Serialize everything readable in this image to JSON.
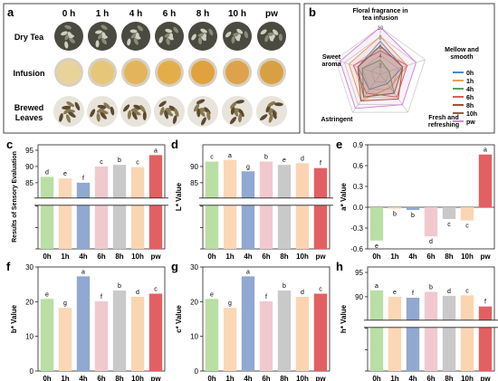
{
  "panel_labels": [
    "a",
    "b",
    "c",
    "d",
    "e",
    "f",
    "g",
    "h"
  ],
  "colors": {
    "0h": "#b9dfa5",
    "1h": "#fbd7b5",
    "4h": "#91a9d1",
    "6h": "#f0c9cf",
    "8h": "#c9c9c9",
    "10h": "#fbd5b1",
    "pw": "#e36062"
  },
  "radar_colors": {
    "0h": "#4a87c7",
    "1h": "#f0a050",
    "4h": "#5aa05a",
    "6h": "#d96060",
    "8h": "#a05030",
    "10h": "#8a6040",
    "pw": "#d08ad8"
  },
  "panel_a": {
    "columns": [
      "0 h",
      "1 h",
      "4 h",
      "6 h",
      "8 h",
      "10 h",
      "pw"
    ],
    "rows": [
      "Dry Tea",
      "Infusion",
      "Brewed Leaves"
    ]
  },
  "chart_data": [
    {
      "panel": "b",
      "type": "radar",
      "axes": [
        "Floral fragrance in tea infusion",
        "Mellow and smooth",
        "Fresh and refreshing",
        "Astringent",
        "Sweet aroma"
      ],
      "ticks": [
        "2",
        "4",
        "6",
        "8",
        "10"
      ],
      "rmax": 10,
      "legend": [
        "0h",
        "1h",
        "4h",
        "6h",
        "8h",
        "10h",
        "pw"
      ],
      "series": [
        {
          "name": "0h",
          "values": [
            7,
            5,
            2.5,
            4,
            5
          ]
        },
        {
          "name": "1h",
          "values": [
            8,
            6,
            3.5,
            7,
            7
          ]
        },
        {
          "name": "4h",
          "values": [
            3,
            2,
            5,
            6,
            4
          ]
        },
        {
          "name": "6h",
          "values": [
            5,
            6,
            6,
            5,
            6
          ]
        },
        {
          "name": "8h",
          "values": [
            6,
            5,
            6.5,
            7,
            5
          ]
        },
        {
          "name": "10h",
          "values": [
            6,
            5,
            5,
            6,
            5
          ]
        },
        {
          "name": "pw",
          "values": [
            10,
            8,
            8,
            9,
            9
          ]
        }
      ]
    },
    {
      "panel": "c",
      "type": "bar",
      "ylabel": "Results of Sensory Evaluation",
      "categories": [
        "0h",
        "1h",
        "4h",
        "6h",
        "8h",
        "10h",
        "pw"
      ],
      "values": [
        86.8,
        86.3,
        85.0,
        90.0,
        90.5,
        89.8,
        93.5
      ],
      "letters": [
        "d",
        "e",
        "f",
        "c",
        "b",
        "c",
        "a"
      ],
      "upper_range": [
        80,
        95
      ],
      "upper_ticks": [
        85,
        90,
        95
      ],
      "lower_range": [
        0,
        20
      ],
      "lower_ticks": [
        0,
        10,
        20
      ]
    },
    {
      "panel": "d",
      "type": "bar",
      "ylabel": "L* Value",
      "categories": [
        "0h",
        "1h",
        "4h",
        "6h",
        "8h",
        "10h",
        "pw"
      ],
      "values": [
        91.5,
        92.0,
        88.5,
        91.5,
        90.5,
        91.0,
        89.5
      ],
      "letters": [
        "c",
        "a",
        "g",
        "b",
        "e",
        "d",
        "f"
      ],
      "upper_range": [
        80,
        95
      ],
      "upper_ticks": [
        85,
        90
      ],
      "lower_range": [
        0,
        20
      ],
      "lower_ticks": [
        0,
        10,
        20
      ]
    },
    {
      "panel": "e",
      "type": "bar",
      "ylabel": "a* Value",
      "categories": [
        "0h",
        "1h",
        "4h",
        "6h",
        "8h",
        "10h",
        "pw"
      ],
      "values": [
        -0.48,
        -0.02,
        -0.04,
        -0.42,
        -0.17,
        -0.19,
        0.76
      ],
      "letters": [
        "e",
        "b",
        "b",
        "d",
        "c",
        "c",
        "a"
      ],
      "ylim": [
        -0.6,
        0.9
      ],
      "ticks": [
        -0.6,
        -0.3,
        0.0,
        0.3,
        0.6,
        0.9
      ]
    },
    {
      "panel": "f",
      "type": "bar",
      "ylabel": "b* Value",
      "categories": [
        "0h",
        "1h",
        "4h",
        "6h",
        "8h",
        "10h",
        "pw"
      ],
      "values": [
        20.8,
        18.2,
        27.3,
        20.1,
        23.2,
        21.4,
        22.3
      ],
      "letters": [
        "e",
        "g",
        "a",
        "f",
        "b",
        "d",
        "c"
      ],
      "ylim": [
        0,
        30
      ],
      "ticks": [
        0,
        10,
        20,
        30
      ]
    },
    {
      "panel": "g",
      "type": "bar",
      "ylabel": "c* Value",
      "categories": [
        "0h",
        "1h",
        "4h",
        "6h",
        "8h",
        "10h",
        "pw"
      ],
      "values": [
        20.8,
        18.2,
        27.3,
        20.1,
        23.2,
        21.4,
        22.3
      ],
      "letters": [
        "e",
        "g",
        "a",
        "f",
        "b",
        "d",
        "c"
      ],
      "ylim": [
        0,
        30
      ],
      "ticks": [
        0,
        10,
        20,
        30
      ]
    },
    {
      "panel": "h",
      "type": "bar",
      "ylabel": "h* Value",
      "categories": [
        "0h",
        "1h",
        "4h",
        "6h",
        "8h",
        "10h",
        "pw"
      ],
      "values": [
        91.3,
        90.0,
        89.8,
        91.0,
        90.2,
        90.3,
        88.0
      ],
      "letters": [
        "a",
        "e",
        "f",
        "b",
        "d",
        "c",
        "f"
      ],
      "upper_range": [
        85,
        95
      ],
      "upper_ticks": [
        90,
        95
      ],
      "lower_range": [
        0,
        20
      ],
      "lower_ticks": [
        0,
        10,
        20
      ]
    }
  ]
}
